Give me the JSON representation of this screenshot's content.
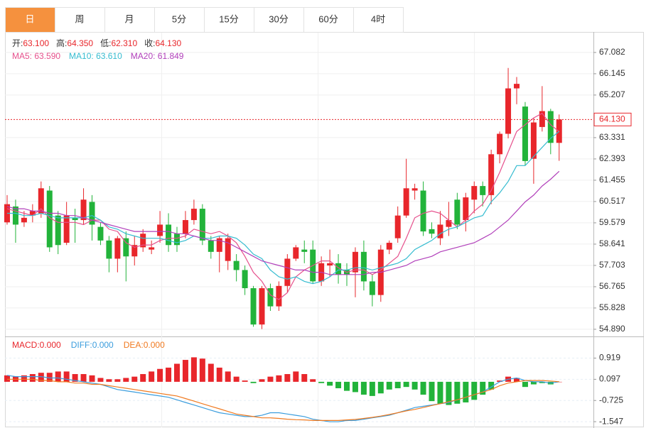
{
  "tabs": [
    "日",
    "周",
    "月",
    "5分",
    "15分",
    "30分",
    "60分",
    "4时"
  ],
  "active_tab": 0,
  "chart_data": [
    {
      "type": "candlestick",
      "ohlc": [
        {
          "label": "开:",
          "value": "63.100"
        },
        {
          "label": "高:",
          "value": "64.350"
        },
        {
          "label": "低:",
          "value": "62.310"
        },
        {
          "label": "收:",
          "value": "64.130"
        }
      ],
      "up_color": "#e8262b",
      "down_color": "#22b33a",
      "open": [
        59.6,
        60.3,
        59.6,
        59.9,
        60.0,
        61.0,
        59.9,
        58.7,
        59.8,
        59.7,
        60.5,
        59.4,
        58.8,
        58.0,
        58.9,
        58.1,
        58.5,
        58.4,
        59.0,
        59.5,
        59.1,
        59.1,
        59.7,
        60.2,
        58.8,
        58.3,
        57.9,
        57.9,
        57.5,
        56.7,
        55.1,
        56.7,
        55.9,
        56.8,
        58.0,
        58.4,
        58.4,
        57.0,
        57.7,
        57.8,
        57.5,
        57.4,
        58.3,
        57.0,
        56.4,
        58.4,
        58.9,
        59.9,
        61.0,
        61.0,
        59.3,
        58.9,
        59.4,
        60.6,
        59.7,
        60.6,
        61.2,
        60.8,
        62.6,
        63.5,
        65.5,
        64.7,
        62.4,
        63.8,
        64.5,
        63.1
      ],
      "high": [
        60.8,
        60.6,
        60.1,
        60.4,
        61.4,
        61.2,
        60.1,
        60.5,
        60.2,
        61.1,
        60.8,
        59.6,
        59.0,
        59.0,
        59.2,
        59.0,
        59.3,
        58.8,
        60.1,
        60.0,
        59.4,
        60.1,
        60.6,
        60.4,
        59.0,
        59.0,
        59.1,
        58.2,
        57.7,
        56.8,
        56.8,
        56.9,
        57.0,
        58.2,
        58.6,
        58.8,
        58.8,
        58.1,
        58.4,
        58.2,
        57.8,
        58.5,
        58.8,
        57.3,
        58.6,
        58.8,
        60.3,
        62.4,
        61.3,
        61.4,
        59.6,
        60.1,
        60.5,
        60.9,
        60.9,
        61.4,
        61.4,
        62.8,
        63.6,
        66.4,
        66.0,
        64.9,
        64.2,
        65.6,
        64.6,
        64.35
      ],
      "low": [
        59.5,
        58.7,
        59.4,
        59.6,
        59.8,
        58.3,
        58.2,
        58.6,
        58.7,
        59.5,
        58.8,
        58.6,
        57.4,
        57.4,
        57.0,
        57.7,
        58.3,
        58.2,
        58.7,
        58.3,
        58.3,
        58.9,
        59.5,
        58.6,
        58.0,
        57.4,
        57.5,
        57.0,
        56.4,
        55.0,
        54.9,
        55.7,
        55.7,
        56.5,
        57.9,
        57.8,
        56.9,
        56.8,
        57.2,
        56.9,
        56.8,
        56.3,
        56.6,
        55.9,
        56.1,
        58.2,
        58.7,
        59.8,
        60.6,
        59.0,
        58.9,
        58.6,
        59.0,
        59.3,
        59.2,
        60.0,
        60.3,
        60.4,
        62.2,
        63.3,
        64.8,
        62.1,
        61.3,
        63.6,
        62.6,
        62.31
      ],
      "close": [
        60.4,
        59.5,
        59.8,
        60.1,
        61.1,
        58.5,
        58.6,
        59.9,
        59.7,
        60.6,
        59.5,
        58.8,
        58.0,
        58.9,
        58.1,
        58.6,
        59.1,
        58.5,
        59.5,
        58.6,
        58.6,
        59.7,
        60.2,
        58.8,
        58.3,
        58.9,
        58.9,
        57.5,
        56.7,
        55.1,
        56.7,
        55.9,
        56.8,
        58.0,
        58.5,
        58.3,
        57.0,
        57.8,
        57.8,
        57.3,
        57.3,
        58.3,
        57.0,
        56.4,
        58.4,
        58.7,
        59.9,
        61.1,
        61.1,
        59.2,
        59.1,
        59.5,
        59.7,
        59.5,
        60.7,
        61.2,
        60.8,
        62.6,
        63.5,
        65.5,
        65.7,
        62.3,
        64.0,
        64.5,
        63.1,
        64.13
      ],
      "series": [
        {
          "name": "MA5: 63.590",
          "color": "#e6508c",
          "values": [
            60.2,
            60.1,
            60.0,
            59.9,
            60.2,
            59.8,
            59.6,
            59.6,
            59.6,
            59.5,
            59.7,
            59.7,
            59.3,
            59.2,
            58.7,
            58.5,
            58.6,
            58.6,
            58.8,
            58.9,
            58.9,
            59.0,
            59.3,
            59.2,
            59.1,
            59.2,
            59.0,
            58.7,
            58.1,
            57.4,
            57.0,
            56.4,
            56.2,
            56.5,
            57.2,
            57.5,
            57.7,
            57.9,
            57.9,
            57.6,
            57.4,
            57.5,
            57.5,
            57.3,
            57.5,
            57.8,
            58.1,
            58.9,
            59.8,
            60.0,
            60.1,
            60.0,
            59.7,
            59.4,
            59.7,
            60.1,
            60.4,
            61.0,
            61.8,
            62.7,
            63.6,
            63.9,
            64.2,
            64.4,
            63.9,
            63.59
          ]
        },
        {
          "name": "MA10: 63.610",
          "color": "#35bcd0",
          "values": [
            60.0,
            60.0,
            59.9,
            59.9,
            60.0,
            59.9,
            59.8,
            59.8,
            59.8,
            59.8,
            59.9,
            59.7,
            59.4,
            59.3,
            59.1,
            59.0,
            58.9,
            58.9,
            58.9,
            58.8,
            58.7,
            58.8,
            59.0,
            58.9,
            58.9,
            59.0,
            59.0,
            58.9,
            58.6,
            58.2,
            58.0,
            57.5,
            57.2,
            57.1,
            57.2,
            57.0,
            56.9,
            57.0,
            57.2,
            57.5,
            57.5,
            57.6,
            57.6,
            57.5,
            57.6,
            57.7,
            57.8,
            58.0,
            58.4,
            58.6,
            58.8,
            59.1,
            59.3,
            59.4,
            59.6,
            59.8,
            59.9,
            60.5,
            60.9,
            61.4,
            62.1,
            62.1,
            62.5,
            62.9,
            63.3,
            63.61
          ]
        },
        {
          "name": "MA20: 61.849",
          "color": "#b13fba",
          "values": [
            60.3,
            60.2,
            60.2,
            60.1,
            60.1,
            60.0,
            60.0,
            59.9,
            59.9,
            59.8,
            59.7,
            59.6,
            59.5,
            59.4,
            59.3,
            59.2,
            59.2,
            59.2,
            59.2,
            59.2,
            59.1,
            59.1,
            59.0,
            58.9,
            58.8,
            58.8,
            58.7,
            58.5,
            58.3,
            58.1,
            57.9,
            57.8,
            57.7,
            57.6,
            57.5,
            57.5,
            57.4,
            57.4,
            57.3,
            57.3,
            57.3,
            57.3,
            57.3,
            57.4,
            57.4,
            57.5,
            57.6,
            57.7,
            57.9,
            58.0,
            58.1,
            58.3,
            58.4,
            58.5,
            58.6,
            58.7,
            58.9,
            59.1,
            59.4,
            59.7,
            60.1,
            60.5,
            60.8,
            61.2,
            61.5,
            61.849
          ]
        }
      ],
      "last_price": {
        "value": 64.13,
        "label": "64.130"
      },
      "ylim": [
        54.7,
        67.83
      ],
      "yticks": [
        67.082,
        66.145,
        65.207,
        63.331,
        62.393,
        61.455,
        60.517,
        59.579,
        58.641,
        57.703,
        56.765,
        55.828,
        {
          "value": 54.89,
          "label": "54.890"
        }
      ],
      "grid": true
    },
    {
      "type": "macd",
      "up_color": "#e8262b",
      "down_color": "#22b33a",
      "series": [
        {
          "name": "MACD:0.000",
          "color": "#e8262b",
          "style": "bar",
          "values": [
            0.25,
            0.2,
            0.25,
            0.3,
            0.35,
            0.35,
            0.4,
            0.4,
            0.3,
            0.3,
            0.25,
            0.15,
            0.1,
            0.1,
            0.15,
            0.2,
            0.3,
            0.4,
            0.5,
            0.55,
            0.7,
            0.85,
            0.95,
            0.9,
            0.7,
            0.55,
            0.4,
            0.2,
            0.05,
            -0.05,
            0.1,
            0.2,
            0.25,
            0.3,
            0.4,
            0.3,
            0.1,
            -0.05,
            -0.15,
            -0.25,
            -0.35,
            -0.4,
            -0.5,
            -0.55,
            -0.45,
            -0.3,
            -0.25,
            -0.2,
            -0.3,
            -0.5,
            -0.75,
            -0.85,
            -0.9,
            -0.85,
            -0.8,
            -0.7,
            -0.5,
            -0.3,
            0.05,
            0.2,
            0.15,
            -0.2,
            -0.1,
            -0.05,
            -0.1,
            0.0
          ]
        },
        {
          "name": "DIFF:0.000",
          "color": "#3b9ddd",
          "style": "line",
          "values": [
            0.25,
            0.2,
            0.2,
            0.2,
            0.2,
            0.15,
            0.15,
            0.1,
            0.05,
            0.0,
            -0.05,
            -0.1,
            -0.2,
            -0.3,
            -0.35,
            -0.4,
            -0.45,
            -0.5,
            -0.55,
            -0.6,
            -0.7,
            -0.8,
            -0.9,
            -1.0,
            -1.1,
            -1.2,
            -1.25,
            -1.3,
            -1.35,
            -1.35,
            -1.3,
            -1.2,
            -1.2,
            -1.25,
            -1.3,
            -1.35,
            -1.45,
            -1.5,
            -1.55,
            -1.55,
            -1.5,
            -1.5,
            -1.45,
            -1.4,
            -1.35,
            -1.3,
            -1.2,
            -1.1,
            -1.0,
            -0.95,
            -0.9,
            -0.85,
            -0.8,
            -0.7,
            -0.6,
            -0.5,
            -0.4,
            -0.2,
            0.0,
            0.1,
            0.15,
            0.05,
            0.0,
            0.0,
            -0.05,
            0.0
          ]
        },
        {
          "name": "DEA:0.000",
          "color": "#f07a20",
          "style": "line",
          "values": [
            0.1,
            0.1,
            0.1,
            0.1,
            0.05,
            0.05,
            0.0,
            0.0,
            -0.05,
            -0.05,
            -0.1,
            -0.1,
            -0.15,
            -0.2,
            -0.25,
            -0.3,
            -0.35,
            -0.4,
            -0.45,
            -0.5,
            -0.55,
            -0.65,
            -0.75,
            -0.85,
            -0.95,
            -1.05,
            -1.15,
            -1.25,
            -1.3,
            -1.35,
            -1.4,
            -1.4,
            -1.42,
            -1.45,
            -1.47,
            -1.48,
            -1.5,
            -1.5,
            -1.5,
            -1.5,
            -1.48,
            -1.46,
            -1.42,
            -1.38,
            -1.33,
            -1.27,
            -1.2,
            -1.13,
            -1.07,
            -1.0,
            -0.92,
            -0.85,
            -0.77,
            -0.7,
            -0.6,
            -0.5,
            -0.4,
            -0.3,
            -0.15,
            -0.05,
            0.0,
            0.05,
            0.05,
            0.05,
            0.03,
            0.0
          ]
        }
      ],
      "ylim": [
        -1.71,
        1.65
      ],
      "yticks": [
        0.919,
        0.097,
        -0.725,
        -1.547
      ],
      "grid": true
    }
  ]
}
